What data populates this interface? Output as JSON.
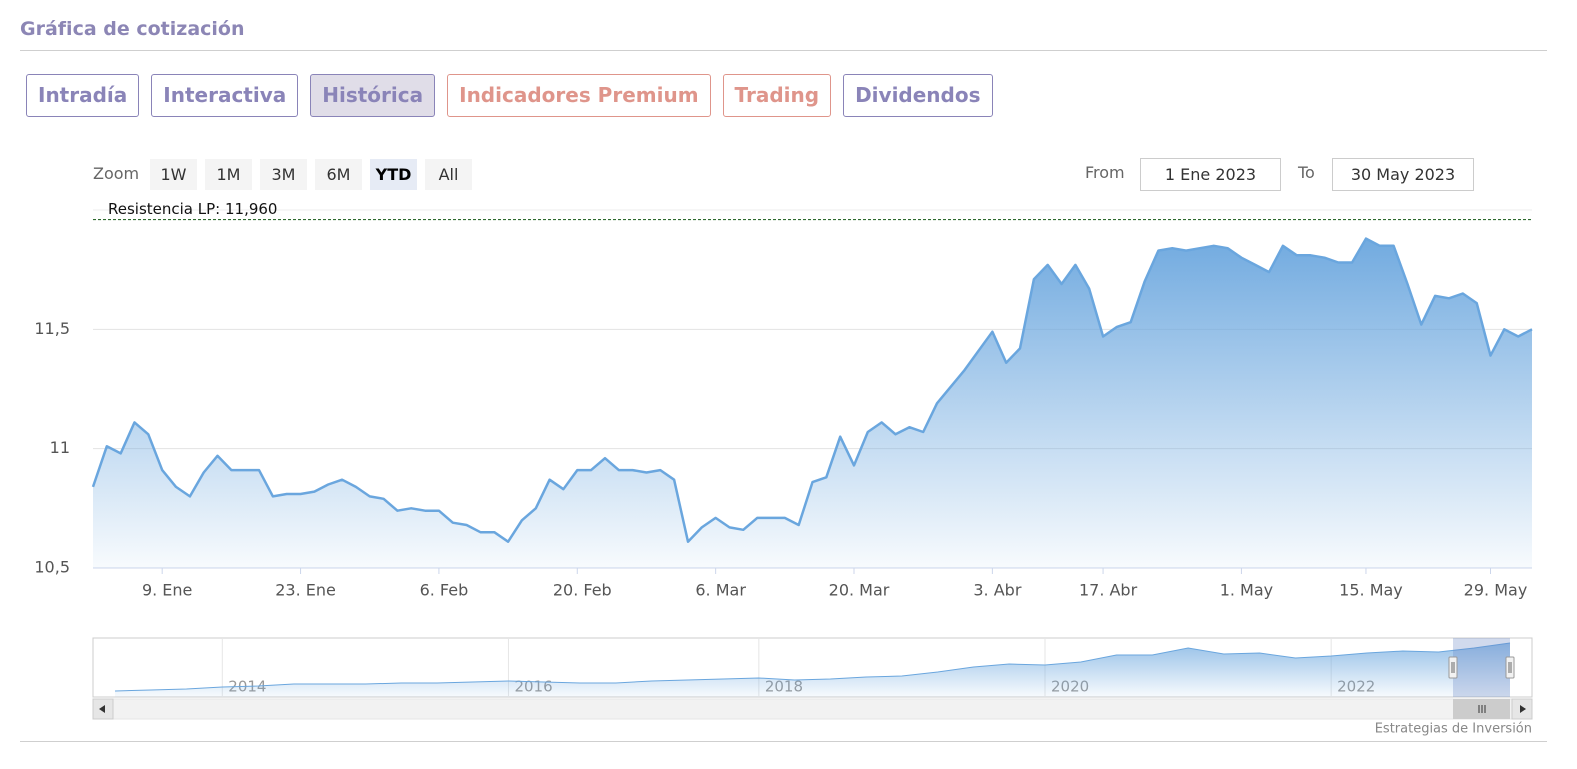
{
  "header": {
    "title": "Gráfica de cotización"
  },
  "tabs": [
    {
      "label": "Intradía",
      "color": "#8a84b8"
    },
    {
      "label": "Interactiva",
      "color": "#8a84b8"
    },
    {
      "label": "Histórica",
      "color": "#8a84b8"
    },
    {
      "label": "Indicadores Premium",
      "color": "#df958b"
    },
    {
      "label": "Trading",
      "color": "#df958b"
    },
    {
      "label": "Dividendos",
      "color": "#8a84b8"
    }
  ],
  "active_tab": 2,
  "range_selector": {
    "label": "Zoom",
    "buttons": [
      "1W",
      "1M",
      "3M",
      "6M",
      "YTD",
      "All"
    ],
    "selected": 4
  },
  "date_inputs": {
    "from_label": "From",
    "from": "1 Ene 2023",
    "to_label": "To",
    "to": "30 May 2023"
  },
  "credits": "Estrategias de Inversión",
  "chart_data": [
    {
      "type": "area",
      "color": "#6aa6de",
      "grid": true,
      "ylim": [
        10.5,
        12.0
      ],
      "yticks": [
        {
          "value": 10.5,
          "label": "10,5"
        },
        11,
        {
          "value": 11.5,
          "label": "11,5"
        }
      ],
      "plot_lines": [
        {
          "value": 11.96,
          "label": "Resistencia LP: 11,960",
          "color": "#2f6b2f"
        }
      ],
      "categories": [
        null,
        null,
        null,
        null,
        null,
        "9. Ene",
        null,
        null,
        null,
        null,
        null,
        null,
        null,
        null,
        null,
        "23. Ene",
        null,
        null,
        null,
        null,
        null,
        null,
        null,
        null,
        null,
        "6. Feb",
        null,
        null,
        null,
        null,
        null,
        null,
        null,
        null,
        null,
        "20. Feb",
        null,
        null,
        null,
        null,
        null,
        null,
        null,
        null,
        null,
        "6. Mar",
        null,
        null,
        null,
        null,
        null,
        null,
        null,
        null,
        null,
        "20. Mar",
        null,
        null,
        null,
        null,
        null,
        null,
        null,
        null,
        null,
        "3. Abr",
        null,
        null,
        null,
        null,
        null,
        null,
        null,
        "17. Abr",
        null,
        null,
        null,
        null,
        null,
        null,
        null,
        null,
        null,
        "1. May",
        null,
        null,
        null,
        null,
        null,
        null,
        null,
        null,
        "15. May",
        null,
        null,
        null,
        null,
        null,
        null,
        null,
        null,
        "29. May",
        null,
        null,
        null
      ],
      "values": [
        10.84,
        11.01,
        10.98,
        11.11,
        11.06,
        10.91,
        10.84,
        10.8,
        10.9,
        10.97,
        10.91,
        10.91,
        10.91,
        10.8,
        10.81,
        10.81,
        10.82,
        10.85,
        10.87,
        10.84,
        10.8,
        10.79,
        10.74,
        10.75,
        10.74,
        10.74,
        10.69,
        10.68,
        10.65,
        10.65,
        10.61,
        10.7,
        10.75,
        10.87,
        10.83,
        10.91,
        10.91,
        10.96,
        10.91,
        10.91,
        10.9,
        10.91,
        10.87,
        10.61,
        10.67,
        10.71,
        10.67,
        10.66,
        10.71,
        10.71,
        10.71,
        10.68,
        10.86,
        10.88,
        11.05,
        10.93,
        11.07,
        11.11,
        11.06,
        11.09,
        11.07,
        11.19,
        11.26,
        11.33,
        11.41,
        11.49,
        11.36,
        11.42,
        11.71,
        11.77,
        11.69,
        11.77,
        11.67,
        11.47,
        11.51,
        11.53,
        11.7,
        11.83,
        11.84,
        11.83,
        11.84,
        11.85,
        11.84,
        11.8,
        11.77,
        11.74,
        11.85,
        11.81,
        11.81,
        11.8,
        11.78,
        11.78,
        11.88,
        11.85,
        11.85,
        11.69,
        11.52,
        11.64,
        11.63,
        11.65,
        11.61,
        11.39,
        11.5,
        11.47,
        11.5
      ]
    },
    {
      "type": "navigator",
      "color": "#6aa6de",
      "categories": [
        null,
        null,
        null,
        "2014",
        null,
        null,
        null,
        null,
        null,
        null,
        null,
        "2016",
        null,
        null,
        null,
        null,
        null,
        null,
        "2018",
        null,
        null,
        null,
        null,
        null,
        null,
        null,
        "2020",
        null,
        null,
        null,
        null,
        null,
        null,
        null,
        "2022",
        null,
        null,
        null,
        null,
        null
      ],
      "values": [
        3.0,
        3.19,
        3.37,
        3.74,
        3.93,
        4.3,
        4.3,
        4.3,
        4.48,
        4.48,
        4.67,
        4.85,
        4.67,
        4.48,
        4.48,
        4.85,
        5.04,
        5.22,
        5.41,
        5.04,
        5.22,
        5.6,
        5.78,
        6.52,
        7.45,
        8.01,
        7.82,
        8.38,
        9.67,
        9.67,
        10.97,
        9.86,
        10.05,
        9.12,
        9.49,
        10.05,
        10.42,
        10.23,
        10.97,
        11.9
      ]
    }
  ]
}
